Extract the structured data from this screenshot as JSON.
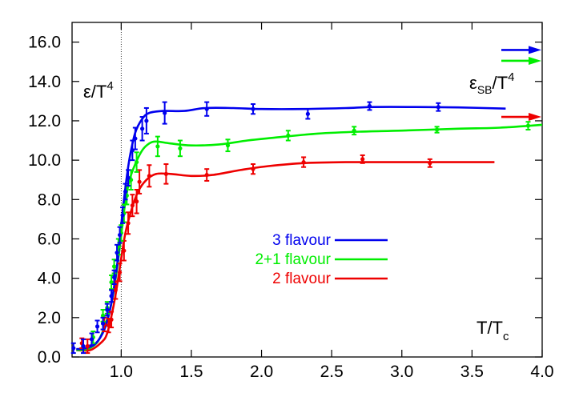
{
  "chart_data": {
    "type": "line",
    "x_label_text": "T/T",
    "x_label_sub": "c",
    "y_label_text": "ε/T",
    "y_label_sup": "4",
    "sb_label_text": "ε",
    "sb_label_sub": "SB",
    "sb_label_tail": "/T",
    "sb_label_sup": "4",
    "xlim": [
      0.65,
      4.0
    ],
    "ylim": [
      0.0,
      17.0
    ],
    "x_ticks": [
      1.0,
      1.5,
      2.0,
      2.5,
      3.0,
      3.5,
      4.0
    ],
    "x_tick_labels": [
      "1.0",
      "1.5",
      "2.0",
      "2.5",
      "3.0",
      "3.5",
      "4.0"
    ],
    "y_ticks": [
      0,
      2,
      4,
      6,
      8,
      10,
      12,
      14,
      16
    ],
    "y_tick_labels": [
      "0.0",
      "2.0",
      "4.0",
      "6.0",
      "8.0",
      "10.0",
      "12.0",
      "14.0",
      "16.0"
    ],
    "tc_marker_x": 1.0,
    "legend_position": "center",
    "series": [
      {
        "name": "3 flavour",
        "color": "#0000ee",
        "sb_limit": 15.6,
        "curve": [
          [
            0.68,
            0.4
          ],
          [
            0.75,
            0.45
          ],
          [
            0.82,
            0.7
          ],
          [
            0.88,
            1.4
          ],
          [
            0.92,
            2.4
          ],
          [
            0.95,
            3.6
          ],
          [
            0.98,
            5.2
          ],
          [
            1.0,
            6.7
          ],
          [
            1.03,
            8.6
          ],
          [
            1.06,
            10.1
          ],
          [
            1.1,
            11.4
          ],
          [
            1.15,
            12.1
          ],
          [
            1.2,
            12.4
          ],
          [
            1.3,
            12.5
          ],
          [
            1.45,
            12.5
          ],
          [
            1.6,
            12.65
          ],
          [
            1.8,
            12.65
          ],
          [
            2.0,
            12.6
          ],
          [
            2.3,
            12.6
          ],
          [
            2.6,
            12.65
          ],
          [
            2.8,
            12.7
          ],
          [
            3.1,
            12.7
          ],
          [
            3.4,
            12.68
          ],
          [
            3.74,
            12.62
          ]
        ],
        "points": [
          {
            "x": 0.66,
            "y": 0.45,
            "err": 0.25
          },
          {
            "x": 0.73,
            "y": 0.55,
            "err": 0.35
          },
          {
            "x": 0.79,
            "y": 0.9,
            "err": 0.3
          },
          {
            "x": 0.83,
            "y": 1.55,
            "err": 0.3
          },
          {
            "x": 0.87,
            "y": 1.7,
            "err": 0.3
          },
          {
            "x": 0.9,
            "y": 2.4,
            "err": 0.3
          },
          {
            "x": 0.93,
            "y": 3.1,
            "err": 0.3
          },
          {
            "x": 0.95,
            "y": 4.05,
            "err": 0.35
          },
          {
            "x": 0.97,
            "y": 5.3,
            "err": 0.4
          },
          {
            "x": 0.99,
            "y": 6.2,
            "err": 0.4
          },
          {
            "x": 1.01,
            "y": 7.2,
            "err": 0.4
          },
          {
            "x": 1.03,
            "y": 8.4,
            "err": 0.4
          },
          {
            "x": 1.05,
            "y": 9.1,
            "err": 0.4
          },
          {
            "x": 1.08,
            "y": 10.5,
            "err": 0.5
          },
          {
            "x": 1.1,
            "y": 11.1,
            "err": 0.55
          },
          {
            "x": 1.15,
            "y": 11.6,
            "err": 0.6
          },
          {
            "x": 1.18,
            "y": 12.0,
            "err": 0.65
          },
          {
            "x": 1.31,
            "y": 12.4,
            "err": 0.55
          },
          {
            "x": 1.61,
            "y": 12.6,
            "err": 0.35
          },
          {
            "x": 1.94,
            "y": 12.6,
            "err": 0.25
          },
          {
            "x": 2.33,
            "y": 12.35,
            "err": 0.25
          },
          {
            "x": 2.77,
            "y": 12.75,
            "err": 0.2
          },
          {
            "x": 3.26,
            "y": 12.7,
            "err": 0.2
          }
        ]
      },
      {
        "name": "2+1 flavour",
        "color": "#00ee00",
        "sb_limit": 15.05,
        "curve": [
          [
            0.68,
            0.35
          ],
          [
            0.76,
            0.4
          ],
          [
            0.83,
            0.75
          ],
          [
            0.88,
            1.5
          ],
          [
            0.92,
            2.4
          ],
          [
            0.95,
            3.5
          ],
          [
            0.98,
            5.0
          ],
          [
            1.0,
            6.2
          ],
          [
            1.03,
            7.9
          ],
          [
            1.06,
            9.0
          ],
          [
            1.1,
            9.8
          ],
          [
            1.15,
            10.5
          ],
          [
            1.2,
            10.85
          ],
          [
            1.25,
            10.95
          ],
          [
            1.35,
            10.85
          ],
          [
            1.5,
            10.75
          ],
          [
            1.7,
            10.8
          ],
          [
            1.9,
            11.0
          ],
          [
            2.1,
            11.15
          ],
          [
            2.4,
            11.35
          ],
          [
            2.7,
            11.45
          ],
          [
            3.0,
            11.5
          ],
          [
            3.4,
            11.6
          ],
          [
            3.7,
            11.65
          ],
          [
            4.0,
            11.8
          ]
        ],
        "points": [
          {
            "x": 0.8,
            "y": 1.0,
            "err": 0.3
          },
          {
            "x": 0.87,
            "y": 2.1,
            "err": 0.3
          },
          {
            "x": 0.9,
            "y": 2.5,
            "err": 0.3
          },
          {
            "x": 0.93,
            "y": 3.8,
            "err": 0.35
          },
          {
            "x": 0.95,
            "y": 4.6,
            "err": 0.35
          },
          {
            "x": 0.98,
            "y": 5.6,
            "err": 0.4
          },
          {
            "x": 1.0,
            "y": 6.3,
            "err": 0.4
          },
          {
            "x": 1.02,
            "y": 7.3,
            "err": 0.45
          },
          {
            "x": 1.04,
            "y": 8.2,
            "err": 0.45
          },
          {
            "x": 1.07,
            "y": 9.0,
            "err": 0.5
          },
          {
            "x": 1.11,
            "y": 9.9,
            "err": 0.5
          },
          {
            "x": 1.26,
            "y": 10.7,
            "err": 0.5
          },
          {
            "x": 1.42,
            "y": 10.6,
            "err": 0.4
          },
          {
            "x": 1.76,
            "y": 10.75,
            "err": 0.3
          },
          {
            "x": 2.19,
            "y": 11.25,
            "err": 0.25
          },
          {
            "x": 2.66,
            "y": 11.5,
            "err": 0.2
          },
          {
            "x": 3.25,
            "y": 11.55,
            "err": 0.15
          },
          {
            "x": 3.9,
            "y": 11.75,
            "err": 0.2
          }
        ]
      },
      {
        "name": "2 flavour",
        "color": "#ee0000",
        "sb_limit": 12.2,
        "curve": [
          [
            0.68,
            0.35
          ],
          [
            0.78,
            0.35
          ],
          [
            0.86,
            0.75
          ],
          [
            0.9,
            1.2
          ],
          [
            0.94,
            2.4
          ],
          [
            0.97,
            3.6
          ],
          [
            1.0,
            5.0
          ],
          [
            1.03,
            6.3
          ],
          [
            1.07,
            7.4
          ],
          [
            1.12,
            8.4
          ],
          [
            1.18,
            9.0
          ],
          [
            1.25,
            9.3
          ],
          [
            1.35,
            9.3
          ],
          [
            1.5,
            9.2
          ],
          [
            1.65,
            9.25
          ],
          [
            1.85,
            9.5
          ],
          [
            2.05,
            9.7
          ],
          [
            2.3,
            9.85
          ],
          [
            2.6,
            9.9
          ],
          [
            3.0,
            9.9
          ],
          [
            3.3,
            9.9
          ],
          [
            3.66,
            9.9
          ]
        ],
        "points": [
          {
            "x": 0.72,
            "y": 0.7,
            "err": 0.25
          },
          {
            "x": 0.76,
            "y": 0.55,
            "err": 0.35
          },
          {
            "x": 0.88,
            "y": 1.65,
            "err": 0.35
          },
          {
            "x": 0.91,
            "y": 1.6,
            "err": 0.35
          },
          {
            "x": 0.93,
            "y": 1.9,
            "err": 0.4
          },
          {
            "x": 0.96,
            "y": 3.4,
            "err": 0.45
          },
          {
            "x": 0.99,
            "y": 4.3,
            "err": 0.45
          },
          {
            "x": 1.02,
            "y": 5.4,
            "err": 0.5
          },
          {
            "x": 1.05,
            "y": 6.8,
            "err": 0.55
          },
          {
            "x": 1.08,
            "y": 7.7,
            "err": 0.55
          },
          {
            "x": 1.11,
            "y": 7.9,
            "err": 0.6
          },
          {
            "x": 1.13,
            "y": 8.9,
            "err": 0.6
          },
          {
            "x": 1.2,
            "y": 9.2,
            "err": 0.55
          },
          {
            "x": 1.32,
            "y": 9.3,
            "err": 0.5
          },
          {
            "x": 1.61,
            "y": 9.25,
            "err": 0.3
          },
          {
            "x": 1.94,
            "y": 9.55,
            "err": 0.25
          },
          {
            "x": 2.3,
            "y": 9.9,
            "err": 0.25
          },
          {
            "x": 2.72,
            "y": 10.05,
            "err": 0.2
          },
          {
            "x": 3.2,
            "y": 9.85,
            "err": 0.2
          }
        ]
      }
    ]
  }
}
